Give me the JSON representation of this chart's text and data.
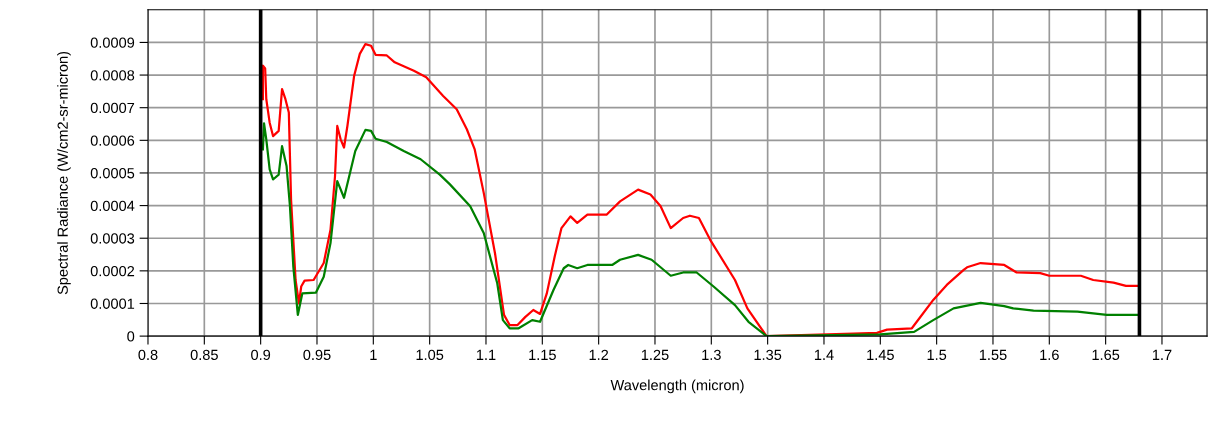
{
  "chart_data": {
    "type": "line",
    "xlabel": "Wavelength (micron)",
    "ylabel": "Spectral Radiance (W/cm2-sr-micron)",
    "xlim": [
      0.8,
      1.74
    ],
    "ylim": [
      0,
      0.001
    ],
    "xticks": [
      0.8,
      0.85,
      0.9,
      0.95,
      1,
      1.05,
      1.1,
      1.15,
      1.2,
      1.25,
      1.3,
      1.35,
      1.4,
      1.45,
      1.5,
      1.55,
      1.6,
      1.65,
      1.7
    ],
    "yticks": [
      0,
      0.0001,
      0.0002,
      0.0003,
      0.0004,
      0.0005,
      0.0006,
      0.0007,
      0.0008,
      0.0009
    ],
    "grid": true,
    "marker": "none",
    "line_style": "solid",
    "ref_lines": [
      {
        "axis": "x",
        "value": 0.9,
        "color": "#000000"
      },
      {
        "axis": "x",
        "value": 1.68,
        "color": "#000000"
      }
    ],
    "series": [
      {
        "color": "#ff0000",
        "x": [
          0.902,
          0.902,
          0.904,
          0.905,
          0.908,
          0.911,
          0.916,
          0.919,
          0.922,
          0.925,
          0.927,
          0.931,
          0.934,
          0.936,
          0.939,
          0.947,
          0.956,
          0.962,
          0.966,
          0.968,
          0.971,
          0.974,
          0.977,
          0.983,
          0.988,
          0.993,
          0.998,
          1.002,
          1.012,
          1.019,
          1.036,
          1.047,
          1.059,
          1.062,
          1.074,
          1.083,
          1.09,
          1.098,
          1.108,
          1.116,
          1.121,
          1.128,
          1.135,
          1.142,
          1.148,
          1.154,
          1.161,
          1.167,
          1.175,
          1.181,
          1.19,
          1.207,
          1.219,
          1.235,
          1.246,
          1.255,
          1.264,
          1.275,
          1.281,
          1.289,
          1.299,
          1.321,
          1.332,
          1.349,
          1.426,
          1.447,
          1.456,
          1.478,
          1.497,
          1.509,
          1.524,
          1.527,
          1.539,
          1.56,
          1.571,
          1.592,
          1.6,
          1.628,
          1.639,
          1.657,
          1.668,
          1.678
        ],
        "values": [
          0.000726,
          0.000829,
          0.00082,
          0.000726,
          0.000654,
          0.000613,
          0.000629,
          0.000757,
          0.000726,
          0.000685,
          0.000418,
          0.000172,
          0.0001,
          0.000152,
          0.00017,
          0.000172,
          0.000224,
          0.000326,
          0.00049,
          0.000644,
          0.000603,
          0.000578,
          0.000644,
          0.000798,
          0.000865,
          0.000895,
          0.00089,
          0.000862,
          0.00086,
          0.000839,
          0.000813,
          0.000793,
          0.000747,
          0.000736,
          0.000695,
          0.000634,
          0.000572,
          0.000439,
          0.000254,
          6.5e-05,
          3.4e-05,
          3.4e-05,
          5.9e-05,
          8e-05,
          6.8e-05,
          0.000131,
          0.000244,
          0.000331,
          0.000367,
          0.000347,
          0.000372,
          0.000372,
          0.000413,
          0.000449,
          0.000434,
          0.000398,
          0.000331,
          0.000362,
          0.000369,
          0.000362,
          0.000295,
          0.000172,
          8.5e-05,
          0,
          8e-06,
          1e-05,
          2e-05,
          2.4e-05,
          0.000111,
          0.000157,
          0.000203,
          0.000211,
          0.000224,
          0.000218,
          0.000195,
          0.000193,
          0.000185,
          0.000185,
          0.000172,
          0.000164,
          0.000154,
          0.000154
        ]
      },
      {
        "color": "#008000",
        "x": [
          0.902,
          0.903,
          0.905,
          0.908,
          0.911,
          0.916,
          0.919,
          0.923,
          0.926,
          0.929,
          0.933,
          0.937,
          0.949,
          0.956,
          0.962,
          0.968,
          0.974,
          0.984,
          0.993,
          0.998,
          1.002,
          1.012,
          1.027,
          1.042,
          1.059,
          1.068,
          1.086,
          1.098,
          1.11,
          1.115,
          1.121,
          1.129,
          1.141,
          1.148,
          1.16,
          1.169,
          1.173,
          1.181,
          1.19,
          1.212,
          1.219,
          1.235,
          1.247,
          1.264,
          1.275,
          1.287,
          1.302,
          1.321,
          1.333,
          1.349,
          1.45,
          1.48,
          1.497,
          1.515,
          1.539,
          1.56,
          1.568,
          1.586,
          1.625,
          1.651,
          1.678
        ],
        "values": [
          0.000572,
          0.000652,
          0.000603,
          0.000511,
          0.00048,
          0.000495,
          0.000582,
          0.000521,
          0.000398,
          0.000213,
          6.5e-05,
          0.000131,
          0.000133,
          0.000182,
          0.000285,
          0.000475,
          0.000424,
          0.000567,
          0.000632,
          0.000629,
          0.000605,
          0.000595,
          0.000567,
          0.000542,
          0.000495,
          0.000465,
          0.000398,
          0.000316,
          0.000162,
          4.9e-05,
          2.4e-05,
          2.4e-05,
          4.9e-05,
          4.4e-05,
          0.000142,
          0.000208,
          0.000218,
          0.000208,
          0.000218,
          0.000218,
          0.000234,
          0.000249,
          0.000234,
          0.000185,
          0.000195,
          0.000195,
          0.000152,
          9.5e-05,
          4.4e-05,
          0,
          5e-06,
          1.3e-05,
          4.9e-05,
          8.5e-05,
          0.000102,
          9.2e-05,
          8.5e-05,
          7.8e-05,
          7.5e-05,
          6.5e-05,
          6.5e-05
        ]
      }
    ]
  }
}
